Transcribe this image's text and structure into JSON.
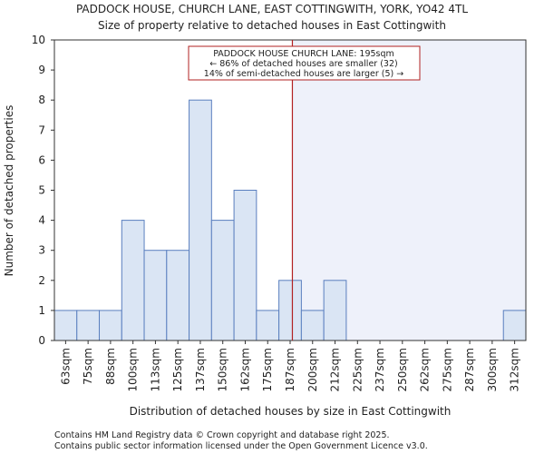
{
  "chart_data": {
    "type": "bar",
    "title": "PADDOCK HOUSE, CHURCH LANE, EAST COTTINGWITH, YORK, YO42 4TL",
    "subtitle": "Size of property relative to detached houses in East Cottingwith",
    "xlabel": "Distribution of detached houses by size in East Cottingwith",
    "ylabel": "Number of detached properties",
    "ylim": [
      0,
      10
    ],
    "yticks": [
      "0",
      "1",
      "2",
      "3",
      "4",
      "5",
      "6",
      "7",
      "8",
      "9",
      "10"
    ],
    "categories": [
      "63sqm",
      "75sqm",
      "88sqm",
      "100sqm",
      "113sqm",
      "125sqm",
      "137sqm",
      "150sqm",
      "162sqm",
      "175sqm",
      "187sqm",
      "200sqm",
      "212sqm",
      "225sqm",
      "237sqm",
      "250sqm",
      "262sqm",
      "275sqm",
      "287sqm",
      "300sqm",
      "312sqm"
    ],
    "values": [
      1,
      1,
      1,
      4,
      3,
      3,
      8,
      4,
      5,
      1,
      2,
      1,
      2,
      0,
      0,
      0,
      0,
      0,
      0,
      0,
      1
    ],
    "marker_value_sqm": 195,
    "annotation": {
      "line1": "PADDOCK HOUSE CHURCH LANE: 195sqm",
      "line2": "← 86% of detached houses are smaller (32)",
      "line3": "14% of semi-detached houses are larger (5) →"
    },
    "colors": {
      "bar_fill": "#dae5f4",
      "bar_stroke": "#5a7fbf",
      "marker": "#b22222",
      "shade": "#eef1fa"
    }
  },
  "footer": {
    "line1": "Contains HM Land Registry data © Crown copyright and database right 2025.",
    "line2": "Contains public sector information licensed under the Open Government Licence v3.0."
  }
}
